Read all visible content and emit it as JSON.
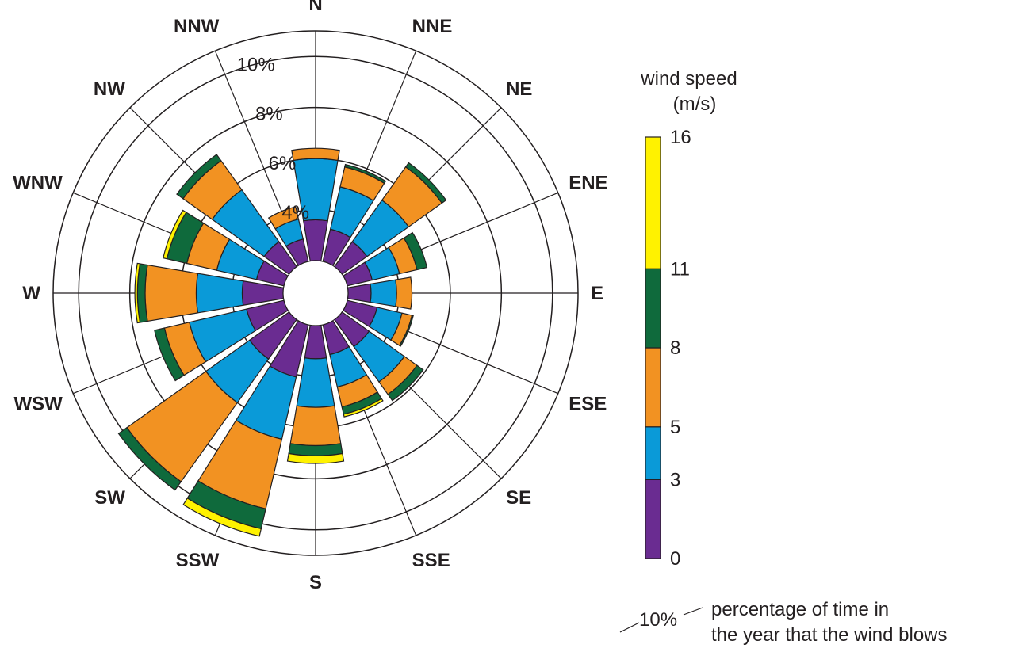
{
  "chart_data": {
    "type": "wind-rose",
    "title": "",
    "directions": [
      "N",
      "NNE",
      "NE",
      "ENE",
      "E",
      "ESE",
      "SE",
      "SSE",
      "S",
      "SSW",
      "SW",
      "WSW",
      "W",
      "WNW",
      "NW",
      "NNW"
    ],
    "radial_unit": "%",
    "radial_range": [
      2,
      11
    ],
    "ring_values": [
      4,
      6,
      8,
      10,
      11
    ],
    "ring_labels": [
      "4%",
      "6%",
      "8%",
      "10%"
    ],
    "legend": {
      "title_line1": "wind speed",
      "title_line2": "(m/s)",
      "bins": [
        {
          "range": [
            0,
            3
          ],
          "color": "#6a2c91"
        },
        {
          "range": [
            3,
            5
          ],
          "color": "#0a9ad8"
        },
        {
          "range": [
            5,
            8
          ],
          "color": "#f29222"
        },
        {
          "range": [
            8,
            11
          ],
          "color": "#0f6a3c"
        },
        {
          "range": [
            11,
            16
          ],
          "color": "#fff200"
        }
      ],
      "tick_labels": [
        "0",
        "3",
        "5",
        "8",
        "11",
        "16"
      ]
    },
    "note": {
      "sample": "10%",
      "line1": "percentage of time in",
      "line2": "the year that the wind blows"
    },
    "series": [
      {
        "direction": "N",
        "cumulative": [
          3.6,
          6.0,
          6.4,
          6.4,
          6.4
        ]
      },
      {
        "direction": "NNE",
        "cumulative": [
          3.3,
          5.0,
          5.8,
          5.9,
          5.9
        ]
      },
      {
        "direction": "NE",
        "cumulative": [
          3.2,
          5.2,
          6.8,
          7.0,
          7.0
        ]
      },
      {
        "direction": "ENE",
        "cumulative": [
          3.0,
          4.1,
          4.8,
          5.2,
          5.2
        ]
      },
      {
        "direction": "E",
        "cumulative": [
          2.9,
          3.9,
          4.5,
          4.5,
          4.5
        ]
      },
      {
        "direction": "ESE",
        "cumulative": [
          3.2,
          4.2,
          4.6,
          4.65,
          4.65
        ]
      },
      {
        "direction": "SE",
        "cumulative": [
          3.3,
          5.0,
          5.6,
          5.9,
          5.9
        ]
      },
      {
        "direction": "SSE",
        "cumulative": [
          3.2,
          4.5,
          5.3,
          5.6,
          5.7
        ]
      },
      {
        "direction": "S",
        "cumulative": [
          3.3,
          5.2,
          6.7,
          7.1,
          7.4
        ]
      },
      {
        "direction": "SSW",
        "cumulative": [
          4.1,
          6.6,
          9.4,
          10.2,
          10.5
        ]
      },
      {
        "direction": "SW",
        "cumulative": [
          3.9,
          6.0,
          9.8,
          10.2,
          10.2
        ]
      },
      {
        "direction": "WSW",
        "cumulative": [
          3.5,
          5.8,
          6.8,
          7.2,
          7.2
        ]
      },
      {
        "direction": "W",
        "cumulative": [
          3.6,
          5.4,
          7.4,
          7.7,
          7.8
        ]
      },
      {
        "direction": "WNW",
        "cumulative": [
          3.1,
          4.7,
          5.9,
          6.7,
          6.85
        ]
      },
      {
        "direction": "NW",
        "cumulative": [
          3.2,
          5.7,
          7.1,
          7.4,
          7.4
        ]
      },
      {
        "direction": "NNW",
        "cumulative": [
          2.9,
          3.7,
          4.2,
          4.2,
          4.2
        ]
      }
    ]
  }
}
